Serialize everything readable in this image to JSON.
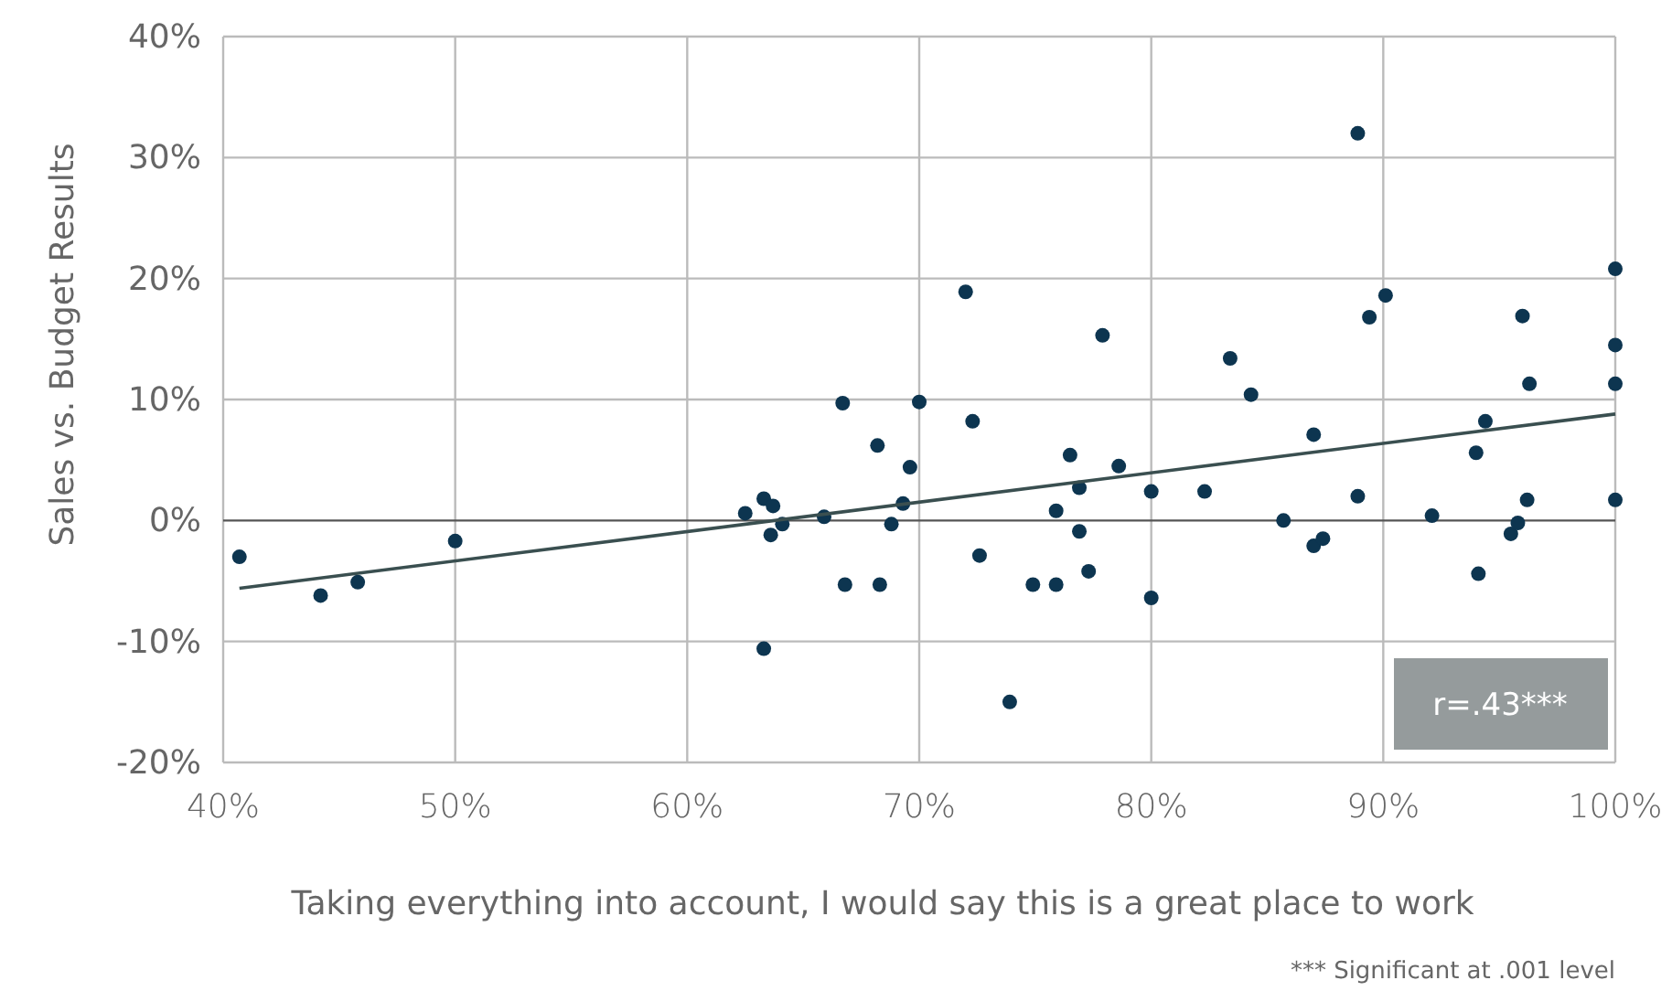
{
  "chart_data": {
    "type": "scatter",
    "xlabel": "Taking everything into account, I would say this is a great place to work",
    "ylabel": "Sales vs. Budget Results",
    "annotations": [
      "r=.43***",
      "*** Significant at .001 level"
    ],
    "xlim": [
      40,
      100
    ],
    "ylim": [
      -20,
      40
    ],
    "xticks": [
      {
        "value": 40,
        "label": "40%"
      },
      {
        "value": 50,
        "label": "50%"
      },
      {
        "value": 60,
        "label": "60%"
      },
      {
        "value": 70,
        "label": "70%"
      },
      {
        "value": 80,
        "label": "80%"
      },
      {
        "value": 90,
        "label": "90%"
      },
      {
        "value": 100,
        "label": "100%"
      }
    ],
    "yticks": [
      {
        "value": -20,
        "label": "-20%"
      },
      {
        "value": -10,
        "label": "-10%"
      },
      {
        "value": 0,
        "label": "0%"
      },
      {
        "value": 10,
        "label": "10%"
      },
      {
        "value": 20,
        "label": "20%"
      },
      {
        "value": 30,
        "label": "30%"
      },
      {
        "value": 40,
        "label": "40%"
      }
    ],
    "grid": true,
    "series": [
      {
        "color": "#0d3550",
        "marker": "circle",
        "x": [
          40.7,
          44.2,
          45.8,
          50,
          62.5,
          63.3,
          63.7,
          63.6,
          64.1,
          63.3,
          65.9,
          66.7,
          66.8,
          68.2,
          68.3,
          68.8,
          69.3,
          69.6,
          70,
          72,
          72.3,
          72.6,
          73.9,
          74.9,
          75.9,
          75.9,
          76.5,
          76.9,
          76.9,
          77.3,
          77.9,
          78.6,
          80,
          80,
          82.3,
          83.4,
          84.3,
          85.7,
          87,
          87,
          87.4,
          88.9,
          88.9,
          89.4,
          90.1,
          92.1,
          94,
          94.1,
          94.4,
          95.5,
          95.8,
          96,
          96.2,
          96.3,
          100,
          100,
          100,
          100
        ],
        "values": [
          -3,
          -6.2,
          -5.1,
          -1.7,
          0.6,
          1.8,
          1.2,
          -1.2,
          -0.3,
          -10.6,
          0.3,
          9.7,
          -5.3,
          6.2,
          -5.3,
          -0.3,
          1.4,
          4.4,
          9.8,
          18.9,
          8.2,
          -2.9,
          -15,
          -5.3,
          0.8,
          -5.3,
          5.4,
          2.7,
          -0.9,
          -4.2,
          15.3,
          4.5,
          2.4,
          -6.4,
          2.4,
          13.4,
          10.4,
          0,
          7.1,
          -2.1,
          -1.5,
          32,
          2,
          16.8,
          18.6,
          0.4,
          5.6,
          -4.4,
          8.2,
          -1.1,
          -0.2,
          16.9,
          1.7,
          11.3,
          20.8,
          14.5,
          11.3,
          1.7
        ]
      },
      {
        "type": "line",
        "color": "#3a4f50",
        "x": [
          40.7,
          100
        ],
        "values": [
          -5.6,
          8.8
        ],
        "line_style": "solid"
      }
    ]
  }
}
